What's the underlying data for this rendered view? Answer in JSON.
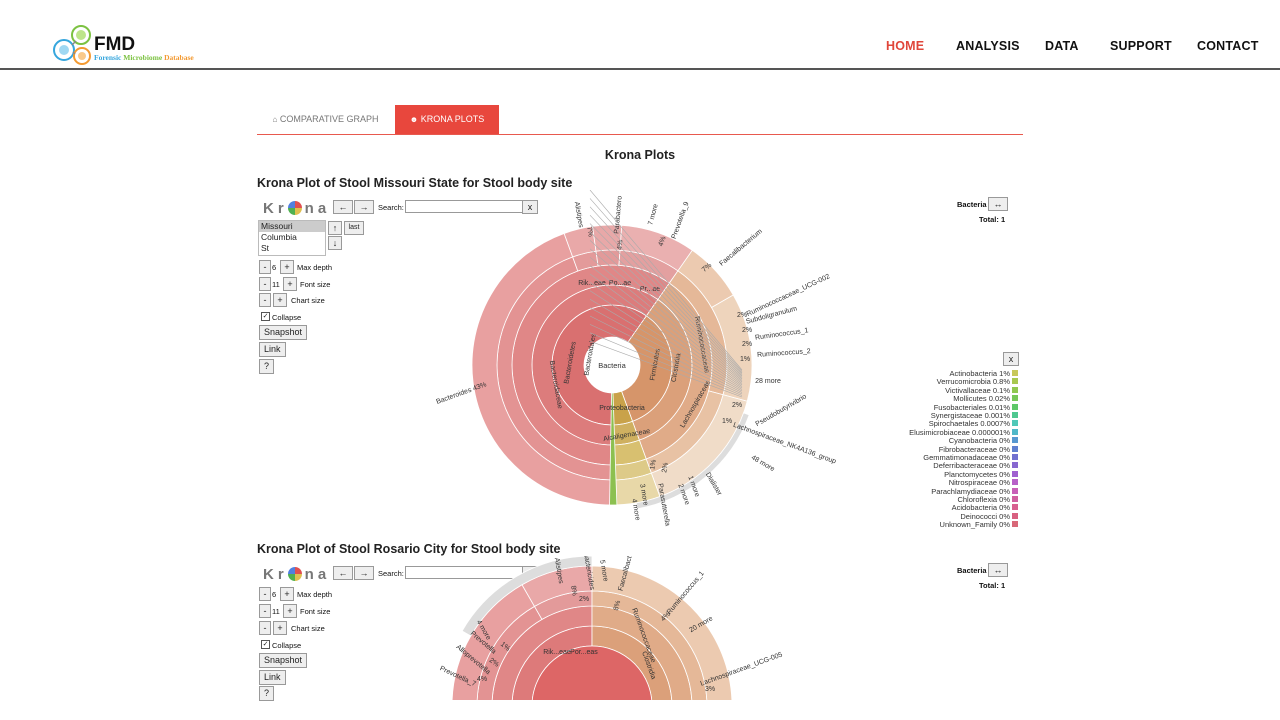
{
  "brand": {
    "title": "FMD",
    "subtitle_parts": [
      "Forensic ",
      "Microbiome ",
      "Database"
    ]
  },
  "nav": [
    {
      "label": "HOME"
    },
    {
      "label": "ANALYSIS"
    },
    {
      "label": "DATA"
    },
    {
      "label": "SUPPORT"
    },
    {
      "label": "CONTACT"
    }
  ],
  "tabs": [
    {
      "label": "COMPARATIVE GRAPH",
      "icon": "home-icon"
    },
    {
      "label": "KRONA PLOTS",
      "icon": "user-icon"
    }
  ],
  "heading": "Krona Plots",
  "plots": [
    {
      "title": "Krona Plot of Stool Missouri State for Stool body site",
      "select_options": [
        "Missouri",
        "Columbia",
        "St"
      ],
      "depth": "6",
      "font_size": "11",
      "selected": "Bacteria",
      "total": "Total: 1"
    },
    {
      "title": "Krona Plot of Stool Rosario City for Stool body site",
      "depth": "6",
      "font_size": "11",
      "selected": "Bacteria",
      "total": "Total: 1"
    }
  ],
  "krona_ui": {
    "logo": "Krona",
    "back": "←",
    "forward": "→",
    "search_label": "Search:",
    "clear": "x",
    "up": "↑",
    "down": "↓",
    "last": "last",
    "minus": "-",
    "plus": "+",
    "max_depth": "Max depth",
    "font_size_label": "Font size",
    "chart_size": "Chart size",
    "collapse": "Collapse",
    "snapshot": "Snapshot",
    "link": "Link",
    "help": "?",
    "expand": "↔",
    "close": "x"
  },
  "chart_data": {
    "type": "sunburst",
    "center": "Bacteria",
    "ring_labels": [
      "Bacteroidetes",
      "Bacteroidia",
      "Bacteroidales",
      "Bacteroidaceae",
      "Bacteroides 43%",
      "Firmicutes",
      "Clostridia",
      "Clostridiales",
      "Ruminococcaceae",
      "Lachnospiraceae",
      "Proteobacteria",
      "Betaproteobacteria",
      "Burkholderiales",
      "Alcaligenaceae",
      "Rik...eae",
      "Po...ae",
      "Pr...ae"
    ],
    "outer_labels": [
      "Alistipes",
      "7%",
      "Parabactero",
      "4%",
      "7 more",
      "Prevotella_9",
      "4%",
      "Faecalibacterium",
      "7%",
      "Ruminococcaceae_UCG-002",
      "2%",
      "Subdoligranulum",
      "2%",
      "Ruminococcus_1",
      "2%",
      "Ruminococcus_2",
      "1%",
      "28 more",
      "Pseudobutyrivibrio",
      "2%",
      "1%",
      "Lachnospiraceae_NK4A136_group",
      "48 more",
      "Dialister",
      "2 more",
      "1 more",
      "4 more",
      "Parasutterella",
      "2%",
      "1%",
      "3 more"
    ],
    "legend": [
      {
        "name": "Actinobacteria",
        "value": "1%",
        "color": "#c8c85a"
      },
      {
        "name": "Verrucomicrobia",
        "value": "0.8%",
        "color": "#a8c850"
      },
      {
        "name": "Victivallaceae",
        "value": "0.1%",
        "color": "#90c850"
      },
      {
        "name": "Mollicutes",
        "value": "0.02%",
        "color": "#78c858"
      },
      {
        "name": "Fusobacteriales",
        "value": "0.01%",
        "color": "#5ec868"
      },
      {
        "name": "Synergistaceae",
        "value": "0.001%",
        "color": "#50c890"
      },
      {
        "name": "Spirochaetales",
        "value": "0.0007%",
        "color": "#50c8b8"
      },
      {
        "name": "Elusimicrobiaceae",
        "value": "0.000001%",
        "color": "#50b8c8"
      },
      {
        "name": "Cyanobacteria",
        "value": "0%",
        "color": "#5898d0"
      },
      {
        "name": "Fibrobacteraceae",
        "value": "0%",
        "color": "#6080d0"
      },
      {
        "name": "Gemmatimonadaceae",
        "value": "0%",
        "color": "#7070d0"
      },
      {
        "name": "Deferribacteraceae",
        "value": "0%",
        "color": "#8868d0"
      },
      {
        "name": "Planctomycetes",
        "value": "0%",
        "color": "#a060d0"
      },
      {
        "name": "Nitrospiraceae",
        "value": "0%",
        "color": "#b860c8"
      },
      {
        "name": "Parachlamydiaceae",
        "value": "0%",
        "color": "#c860b8"
      },
      {
        "name": "Chloroflexia",
        "value": "0%",
        "color": "#d060a0"
      },
      {
        "name": "Acidobacteria",
        "value": "0%",
        "color": "#d86090"
      },
      {
        "name": "Deinococci",
        "value": "0%",
        "color": "#d86080"
      },
      {
        "name": "Unknown_Family",
        "value": "0%",
        "color": "#d86878"
      }
    ],
    "second_outer_labels": [
      "Alistipes",
      "8%",
      "alactericides",
      "2%",
      "5 more",
      "Faecalibact",
      "8%",
      "Ruminococcus_1",
      "4%",
      "20 more",
      "Lachnospiraceae_UCG-005",
      "3%",
      "4 more",
      "Prevotella",
      "1%",
      "Alloprevotella",
      "2%",
      "Prevotella_7",
      "4%",
      "Rik...eae",
      "Por...eas",
      "Ruminococcaceae",
      "Clostridia"
    ]
  }
}
